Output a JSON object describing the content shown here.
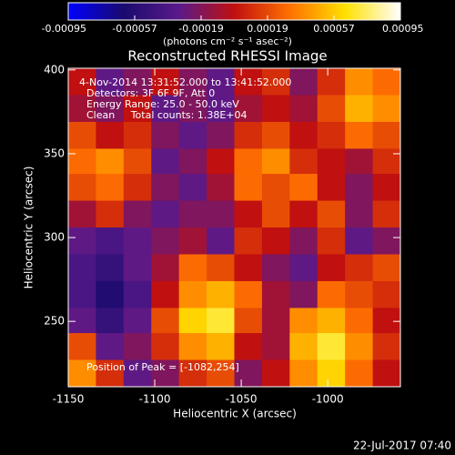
{
  "chart_data": {
    "type": "heatmap",
    "title": "Reconstructed RHESSI Image",
    "xlabel": "Heliocentric X (arcsec)",
    "ylabel": "Heliocentric Y (arcsec)",
    "zlabel": "(photons cm⁻² s⁻¹ asec⁻²)",
    "annotations": [
      "4-Nov-2014 13:31:52.000 to 13:41:52.000",
      "Detectors: 3F 6F 9F, Att 0",
      "Energy Range: 25.0 - 50.0 keV",
      "Clean     Total counts: 1.38E+04"
    ],
    "peak_label": "Position of Peak = [-1082,254]",
    "footer": "22-Jul-2017 07:40",
    "colormap": [
      "#0000ff",
      "#1a0a6e",
      "#5a1a8a",
      "#c01010",
      "#ff7000",
      "#ffe000",
      "#ffffff"
    ],
    "xlim": [
      -1150,
      -958
    ],
    "ylim": [
      211,
      401
    ],
    "xticks": [
      -1150,
      -1100,
      -1050,
      -1000
    ],
    "yticks": [
      250,
      300,
      350,
      400
    ],
    "zlim": [
      -0.00095,
      0.00095
    ],
    "zticks": [
      -0.00095,
      -0.00057,
      -0.00019,
      0.00019,
      0.00057,
      0.00095
    ],
    "x": [
      -1142,
      -1126,
      -1110,
      -1094,
      -1078,
      -1062,
      -1046,
      -1030,
      -1014,
      -998,
      -982,
      -966
    ],
    "y": [
      393,
      377,
      361,
      345,
      330,
      314,
      298,
      282,
      266,
      250,
      235,
      219
    ],
    "z": [
      [
        0,
        -0.0003,
        -0.0002,
        0,
        -0.0002,
        -0.0003,
        0,
        0.0001,
        -0.0002,
        0.0001,
        0.0004,
        0.0003
      ],
      [
        -0.0001,
        -0.0002,
        0,
        -0.0003,
        -0.0002,
        -0.0003,
        -0.0001,
        0,
        -0.0001,
        0.0002,
        0.0005,
        0.0004
      ],
      [
        0.0002,
        0,
        0.0001,
        -0.0002,
        -0.0003,
        -0.0002,
        0.0001,
        0.0002,
        0,
        0.0001,
        0.0003,
        0.0002
      ],
      [
        0.0003,
        0.0004,
        0.0002,
        -0.0003,
        -0.0002,
        0,
        0.0003,
        0.0004,
        0.0001,
        0,
        -0.0001,
        0.0001
      ],
      [
        0.0002,
        0.0003,
        0.0001,
        -0.0002,
        -0.0003,
        -0.0001,
        0.0003,
        0.0002,
        0.0003,
        0,
        -0.0002,
        0
      ],
      [
        -0.0001,
        0.0001,
        -0.0002,
        -0.0003,
        -0.0002,
        -0.0002,
        0,
        0.0002,
        0,
        0.0002,
        -0.0002,
        0.0001
      ],
      [
        -0.0003,
        -0.0004,
        -0.0003,
        -0.0002,
        -0.0001,
        -0.0003,
        0.0001,
        0,
        -0.0002,
        0.0001,
        -0.0003,
        -0.0002
      ],
      [
        -0.0004,
        -0.0005,
        -0.0003,
        -0.0001,
        0.0003,
        0.0002,
        0,
        -0.0002,
        -0.0003,
        0,
        0.0001,
        0.0002
      ],
      [
        -0.0004,
        -0.0006,
        -0.0004,
        0,
        0.0004,
        0.0005,
        0.0003,
        -0.0001,
        -0.0002,
        0.0003,
        0.0002,
        0.0001
      ],
      [
        -0.0003,
        -0.0005,
        -0.0003,
        0.0002,
        0.0006,
        0.0007,
        0.0002,
        -0.0001,
        0.0004,
        0.0005,
        0.0003,
        0
      ],
      [
        0.0002,
        -0.0003,
        -0.0002,
        0.0001,
        0.0004,
        0.0005,
        0,
        -0.0001,
        0.0005,
        0.0007,
        0.0004,
        0.0001
      ],
      [
        0.0004,
        0.0001,
        -0.0003,
        -0.0002,
        0.0001,
        0.0002,
        -0.0002,
        0,
        0.0004,
        0.0006,
        0.0003,
        0
      ]
    ]
  }
}
